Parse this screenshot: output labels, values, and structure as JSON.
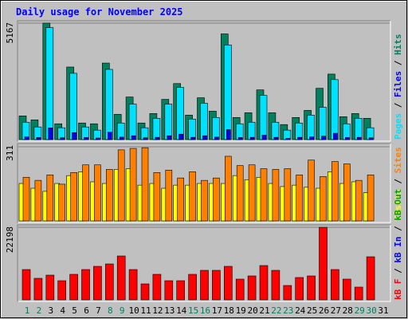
{
  "chart_data": [
    {
      "type": "bar",
      "title": "Daily usage for November 2025",
      "ylim": [
        0,
        5167
      ],
      "yticks": [
        5167
      ],
      "legend_separator": " / ",
      "series": [
        {
          "name": "Hits",
          "color": "#00805c",
          "values": [
            1050,
            875,
            5167,
            700,
            3220,
            735,
            700,
            3395,
            1120,
            1890,
            735,
            1155,
            1785,
            2485,
            1085,
            1855,
            1260,
            4690,
            980,
            1190,
            2205,
            1190,
            665,
            980,
            1295,
            2275,
            2905,
            1015,
            1155,
            945,
            null
          ]
        },
        {
          "name": "Pages",
          "color": "#00e0ff",
          "values": [
            770,
            560,
            4970,
            525,
            2940,
            560,
            420,
            3115,
            735,
            1575,
            525,
            945,
            1575,
            2310,
            910,
            1610,
            980,
            4200,
            700,
            770,
            1960,
            770,
            420,
            735,
            1085,
            1435,
            2660,
            700,
            945,
            525,
            null
          ]
        },
        {
          "name": "Files",
          "color": "#0000ff",
          "values": [
            120,
            90,
            520,
            80,
            310,
            90,
            70,
            330,
            110,
            170,
            80,
            100,
            170,
            240,
            100,
            170,
            110,
            440,
            90,
            100,
            200,
            100,
            60,
            100,
            120,
            150,
            280,
            90,
            100,
            80,
            null
          ]
        }
      ]
    },
    {
      "type": "bar",
      "ylim": [
        0,
        311
      ],
      "yticks": [
        311
      ],
      "legend_separator": " / ",
      "series": [
        {
          "name": "Visits",
          "color": "#ffff00",
          "values": [
            157,
            137,
            124,
            157,
            190,
            206,
            164,
            157,
            216,
            219,
            150,
            157,
            137,
            150,
            150,
            157,
            157,
            157,
            190,
            173,
            183,
            157,
            144,
            150,
            141,
            137,
            206,
            157,
            164,
            118,
            null
          ]
        },
        {
          "name": "Sites",
          "color": "#ff8000",
          "values": [
            183,
            170,
            193,
            154,
            203,
            235,
            235,
            216,
            298,
            304,
            307,
            203,
            213,
            180,
            206,
            170,
            180,
            271,
            232,
            235,
            219,
            216,
            219,
            193,
            255,
            186,
            249,
            239,
            170,
            193,
            null
          ]
        }
      ]
    },
    {
      "type": "bar",
      "ylim": [
        0,
        22198
      ],
      "yticks": [
        22198
      ],
      "legend_separator": " / ",
      "legend": [
        {
          "name": "kB F",
          "color": "#ff0000"
        },
        {
          "name": "kB In",
          "color": "#0000ff"
        },
        {
          "name": "kB Out",
          "color": "#00a000"
        }
      ],
      "series": [
        {
          "name": "kB F",
          "color": "#ff0000",
          "values": [
            9272,
            6588,
            7564,
            5856,
            7808,
            9272,
            10248,
            10980,
            13420,
            9272,
            4880,
            7808,
            5856,
            5856,
            7808,
            9028,
            9028,
            10248,
            6344,
            7320,
            10492,
            9028,
            4392,
            6832,
            7320,
            22198,
            9272,
            6344,
            3904,
            13176,
            null
          ]
        }
      ],
      "categories": [
        "1",
        "2",
        "3",
        "4",
        "5",
        "6",
        "7",
        "8",
        "9",
        "10",
        "11",
        "12",
        "13",
        "14",
        "15",
        "16",
        "17",
        "18",
        "19",
        "20",
        "21",
        "22",
        "23",
        "24",
        "25",
        "26",
        "27",
        "28",
        "29",
        "30",
        "31"
      ],
      "category_colors": [
        "#00805c",
        "#00805c",
        "#000000",
        "#000000",
        "#000000",
        "#000000",
        "#000000",
        "#00805c",
        "#00805c",
        "#000000",
        "#000000",
        "#000000",
        "#000000",
        "#000000",
        "#00805c",
        "#00805c",
        "#000000",
        "#000000",
        "#000000",
        "#000000",
        "#000000",
        "#00805c",
        "#00805c",
        "#000000",
        "#000000",
        "#000000",
        "#000000",
        "#000000",
        "#00805c",
        "#00805c",
        "#000000"
      ]
    }
  ]
}
